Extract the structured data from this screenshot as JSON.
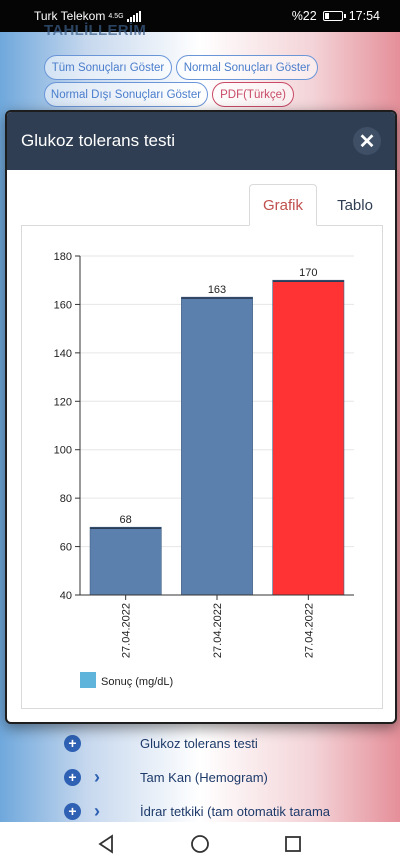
{
  "status_bar": {
    "carrier": "Turk Telekom",
    "network": "4.5G",
    "battery": "%22",
    "time": "17:54"
  },
  "background_page": {
    "heading": "TAHLİLLERİM",
    "filters": [
      "Tüm Sonuçları Göster",
      "Normal Sonuçları Göster",
      "Normal Dışı Sonuçları Göster",
      "PDF(Türkçe)"
    ],
    "tests": [
      "Glukoz tolerans testi",
      "Tam Kan (Hemogram)",
      "İdrar tetkiki (tam otomatik tarama"
    ]
  },
  "modal": {
    "title": "Glukoz tolerans testi",
    "tabs": [
      "Grafik",
      "Tablo"
    ],
    "active_tab": "Grafik"
  },
  "chart_data": {
    "type": "bar",
    "categories": [
      "27.04.2022",
      "27.04.2022",
      "27.04.2022"
    ],
    "values": [
      68,
      163,
      170
    ],
    "bar_colors": [
      "#5b80ad",
      "#5b80ad",
      "#ff3333"
    ],
    "ylim": [
      40,
      180
    ],
    "yticks": [
      40,
      60,
      80,
      100,
      120,
      140,
      160,
      180
    ],
    "legend": "Sonuç (mg/dL)",
    "legend_color": "#5fb4dc",
    "legend_position": "bottom-left",
    "grid": true
  }
}
